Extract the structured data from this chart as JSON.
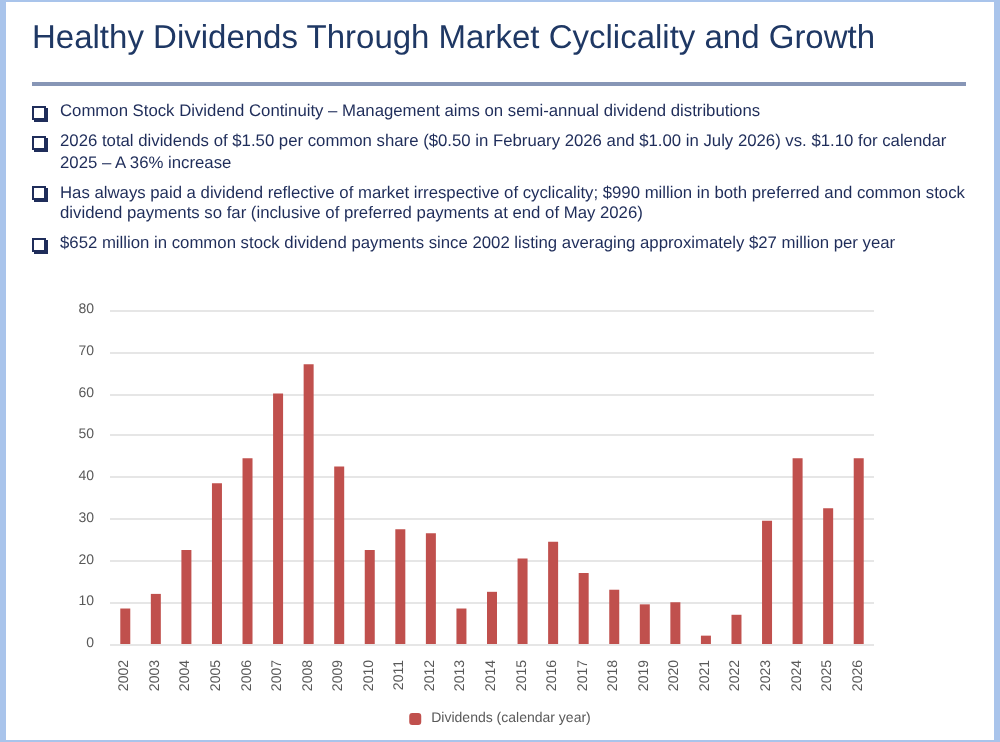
{
  "chart_data": {
    "type": "bar",
    "title": "Healthy Dividends Through Market Cyclicality and Growth",
    "annotations": [
      "Common Stock Dividend Continuity – Management aims on semi-annual dividend distributions",
      "2026 total dividends of $1.50 per common share ($0.50 in February 2026 and $1.00 in July 2026) vs. $1.10 for calendar 2025 – A 36% increase",
      "Has always paid a dividend reflective of market irrespective of cyclicality; $990 million in both preferred and common stock dividend payments so far (inclusive of preferred payments at end of May 2026)",
      "$652 million in common stock dividend payments since 2002 listing averaging approximately $27 million per year"
    ],
    "categories": [
      "2002",
      "2003",
      "2004",
      "2005",
      "2006",
      "2007",
      "2008",
      "2009",
      "2010",
      "2011",
      "2012",
      "2013",
      "2014",
      "2015",
      "2016",
      "2017",
      "2018",
      "2019",
      "2020",
      "2021",
      "2022",
      "2023",
      "2024",
      "2025",
      "2026"
    ],
    "series": [
      {
        "name": "Dividends (calendar year)",
        "color": "#c0504d",
        "values": [
          8.5,
          12,
          22.5,
          38.5,
          44.5,
          60,
          67,
          42.5,
          22.5,
          27.5,
          26.5,
          8.5,
          12.5,
          20.5,
          24.5,
          17,
          13,
          9.5,
          10,
          2,
          7,
          29.5,
          44.5,
          32.5,
          44.5
        ]
      }
    ],
    "ylim": [
      0,
      80
    ],
    "yticks": [
      0,
      10,
      20,
      30,
      40,
      50,
      60,
      70,
      80
    ],
    "grid": "y",
    "legend": "bottom"
  }
}
